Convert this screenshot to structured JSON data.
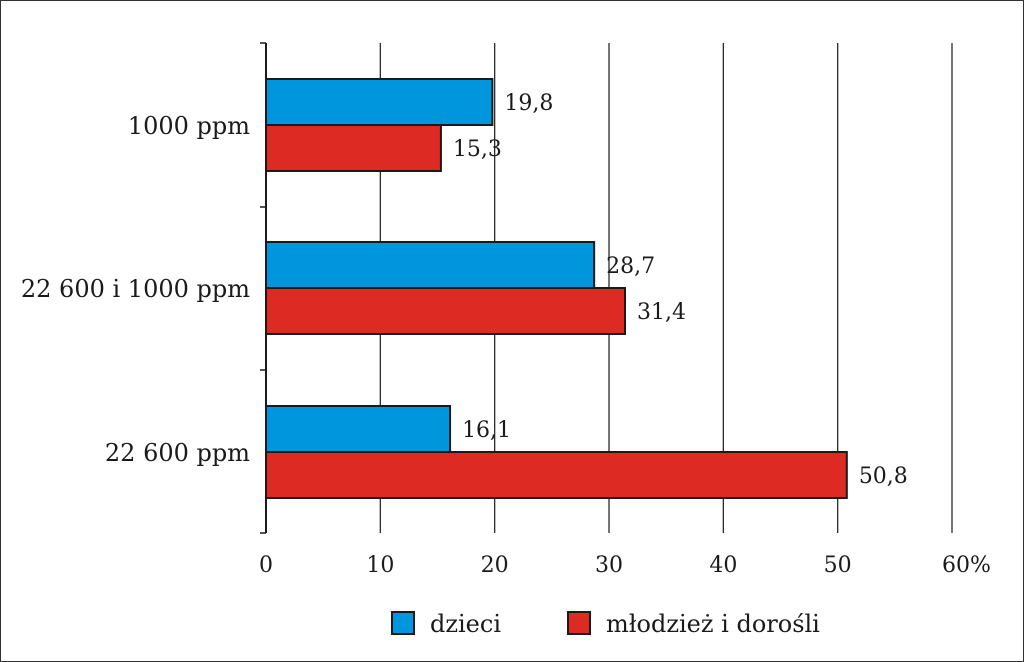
{
  "chart_data": {
    "type": "bar",
    "orientation": "horizontal",
    "categories": [
      "1000 ppm",
      "22 600 i 1000 ppm",
      "22 600 ppm"
    ],
    "series": [
      {
        "name": "dzieci",
        "values": [
          19.8,
          28.7,
          16.1
        ],
        "labels": [
          "19,8",
          "28,7",
          "16,1"
        ],
        "color": "#0096dd"
      },
      {
        "name": "młodzież i dorośli",
        "values": [
          15.3,
          31.4,
          50.8
        ],
        "labels": [
          "15,3",
          "31,4",
          "50,8"
        ],
        "color": "#dd2a23"
      }
    ],
    "xlim": [
      0,
      60
    ],
    "xticks": [
      "0",
      "10",
      "20",
      "30",
      "40",
      "50",
      "60%"
    ],
    "grid": "vertical",
    "legend_position": "bottom"
  }
}
